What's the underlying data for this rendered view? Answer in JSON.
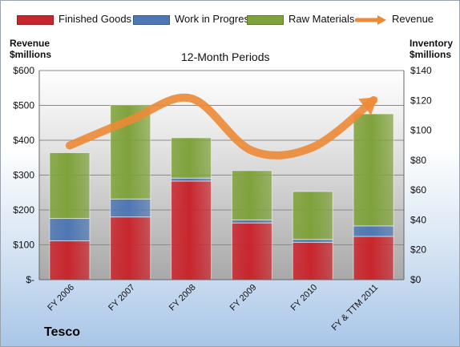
{
  "company": "Tesco",
  "chart_data": {
    "type": "bar",
    "subtitle": "12-Month Periods",
    "categories": [
      "FY 2006",
      "FY 2007",
      "FY 2008",
      "FY 2009",
      "FY 2010",
      "FY & TTM 2011"
    ],
    "series": [
      {
        "name": "Finished Goods",
        "color": "#c8262d",
        "values": [
          26,
          42,
          66,
          38,
          25,
          29
        ]
      },
      {
        "name": "Work in Progress",
        "color": "#4f77b3",
        "values": [
          15,
          12,
          2,
          2,
          2,
          7
        ]
      },
      {
        "name": "Raw Materials",
        "color": "#7fa23b",
        "values": [
          44,
          63,
          27,
          33,
          32,
          75
        ]
      }
    ],
    "line_series": {
      "name": "Revenue",
      "color": "#ec8a36",
      "values": [
        385,
        458,
        520,
        370,
        380,
        515
      ]
    },
    "left_axis": {
      "title_line1": "Revenue",
      "title_line2": "$millions",
      "min": 0,
      "max": 600,
      "ticks": [
        "$-",
        "$100",
        "$200",
        "$300",
        "$400",
        "$500",
        "$600"
      ]
    },
    "right_axis": {
      "title_line1": "Inventory",
      "title_line2": "$millions",
      "min": 0,
      "max": 140,
      "ticks": [
        "$0",
        "$20",
        "$40",
        "$60",
        "$80",
        "$100",
        "$120",
        "$140"
      ]
    },
    "grid": true,
    "legend_position": "top"
  }
}
